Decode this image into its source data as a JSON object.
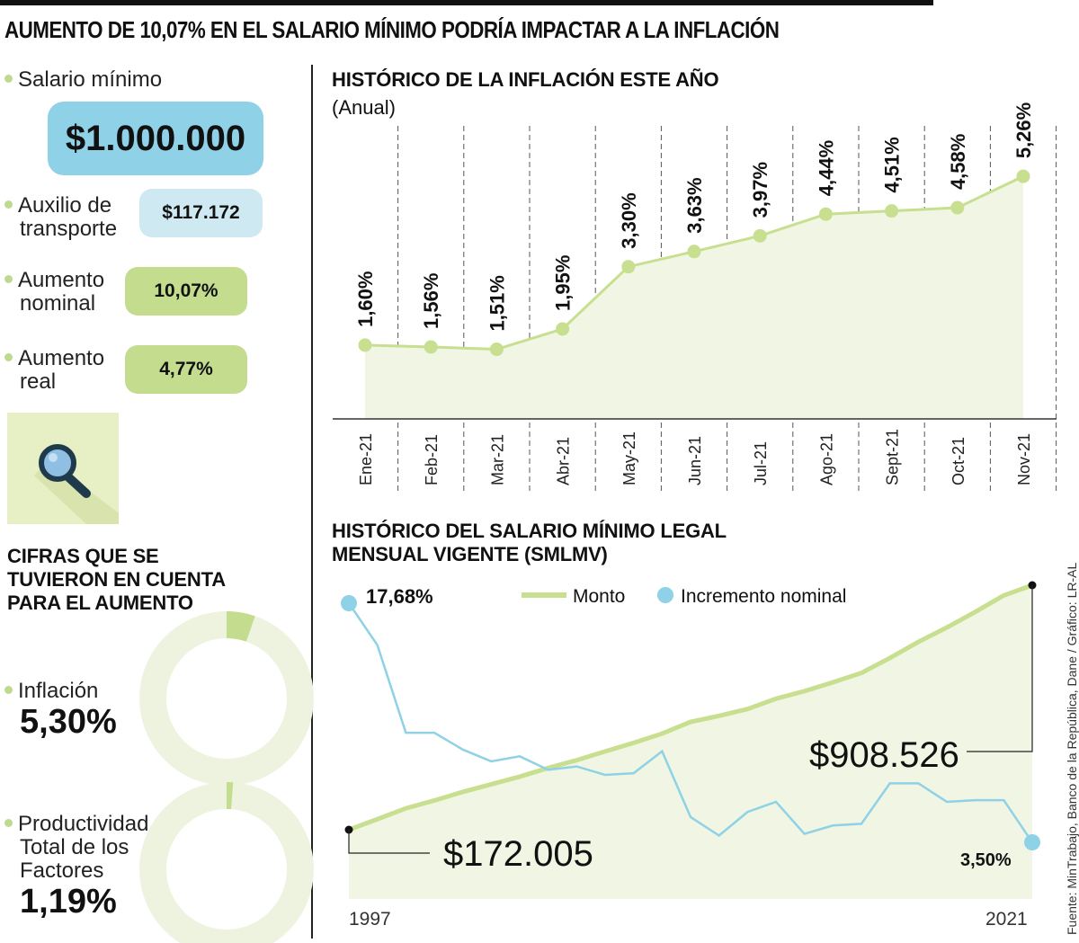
{
  "title": "AUMENTO DE 10,07% EN EL SALARIO MÍNIMO PODRÍA IMPACTAR A LA INFLACIÓN",
  "left_panel": {
    "salario": {
      "label": "Salario mínimo",
      "value": "$1.000.000"
    },
    "auxilio": {
      "label_line1": "Auxilio de",
      "label_line2": "transporte",
      "value": "$117.172"
    },
    "nominal": {
      "label_line1": "Aumento",
      "label_line2": "nominal",
      "value": "10,07%"
    },
    "real": {
      "label_line1": "Aumento",
      "label_line2": "real",
      "value": "4,77%"
    },
    "icon": "magnifying-glass-icon",
    "cifras_title_line1": "CIFRAS QUE SE",
    "cifras_title_line2": "TUVIERON EN CUENTA",
    "cifras_title_line3": "PARA EL AUMENTO",
    "inflacion": {
      "label": "Inflación",
      "value": "5,30%",
      "fraction": 0.053
    },
    "productividad": {
      "label_line1": "Productividad",
      "label_line2": "Total de los",
      "label_line3": "Factores",
      "value": "1,19%",
      "fraction": 0.0119
    }
  },
  "colors": {
    "green": "#c4dc8e",
    "green_line": "#c7df8f",
    "green_area": "#f0f6e3",
    "blue": "#8fd1e6",
    "donut_bg": "#eef3e0",
    "dashed": "#555555"
  },
  "chart_data": [
    {
      "type": "line",
      "title": "HISTÓRICO DE LA INFLACIÓN ESTE AÑO",
      "subtitle": "(Anual)",
      "categories": [
        "Ene-21",
        "Feb-21",
        "Mar-21",
        "Abr-21",
        "May-21",
        "Jun-21",
        "Jul-21",
        "Ago-21",
        "Sept-21",
        "Oct-21",
        "Nov-21"
      ],
      "values": [
        1.6,
        1.56,
        1.51,
        1.95,
        3.3,
        3.63,
        3.97,
        4.44,
        4.51,
        4.58,
        5.26
      ],
      "labels": [
        "1,60%",
        "1,56%",
        "1,51%",
        "1,95%",
        "3,30%",
        "3,63%",
        "3,97%",
        "4,44%",
        "4,51%",
        "4,58%",
        "5,26%"
      ],
      "ylim": [
        0,
        6
      ],
      "grid": "vertical dashed"
    },
    {
      "type": "line",
      "title_line1": "HISTÓRICO DEL SALARIO MÍNIMO LEGAL",
      "title_line2": "MENSUAL VIGENTE (SMLMV)",
      "x_start": "1997",
      "x_end": "2021",
      "legend": [
        "Monto",
        "Incremento nominal"
      ],
      "series": [
        {
          "name": "Monto",
          "values": [
            172005,
            203826,
            236460,
            260100,
            286000,
            309000,
            332000,
            358000,
            381500,
            408000,
            433700,
            461500,
            496900,
            515000,
            535600,
            566700,
            589500,
            616000,
            644350,
            689455,
            737717,
            781242,
            828116,
            877803,
            908526
          ]
        },
        {
          "name": "Incremento nominal",
          "values": [
            17.68,
            15.2,
            10.0,
            10.0,
            9.0,
            8.3,
            8.6,
            7.8,
            8.0,
            7.5,
            7.6,
            8.9,
            5.0,
            3.9,
            5.3,
            5.9,
            4.0,
            4.5,
            4.6,
            7.0,
            7.0,
            5.9,
            6.0,
            6.0,
            3.5
          ]
        }
      ],
      "annotations": {
        "monto_start": "$172.005",
        "monto_end": "$908.526",
        "incremento_start": "17,68%",
        "incremento_end": "3,50%"
      }
    }
  ],
  "source": "Fuente: MinTrabajo, Banco de la República, Dane / Gráfico: LR-AL"
}
